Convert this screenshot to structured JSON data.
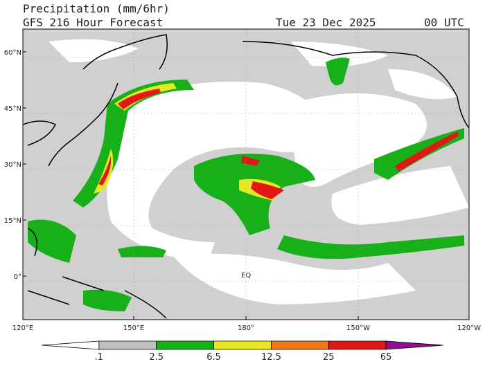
{
  "header": {
    "title": "Precipitation (mm/6hr)",
    "subtitle": "GFS 216 Hour Forecast",
    "date": "Tue 23 Dec 2025",
    "time": "00 UTC"
  },
  "map": {
    "lat_labels": [
      "60°N",
      "45°N",
      "30°N",
      "15°N",
      "0°"
    ],
    "lon_labels": [
      "120°E",
      "150°E",
      "180°",
      "150°W",
      "120°W"
    ],
    "equator_label": "EQ"
  },
  "colorbar": {
    "labels": [
      ".1",
      "2.5",
      "6.5",
      "12.5",
      "25",
      "65"
    ],
    "colors": [
      "#ffffff",
      "#c0c0c0",
      "#18b018",
      "#e8e820",
      "#f07818",
      "#e01818",
      "#8c1090"
    ]
  }
}
